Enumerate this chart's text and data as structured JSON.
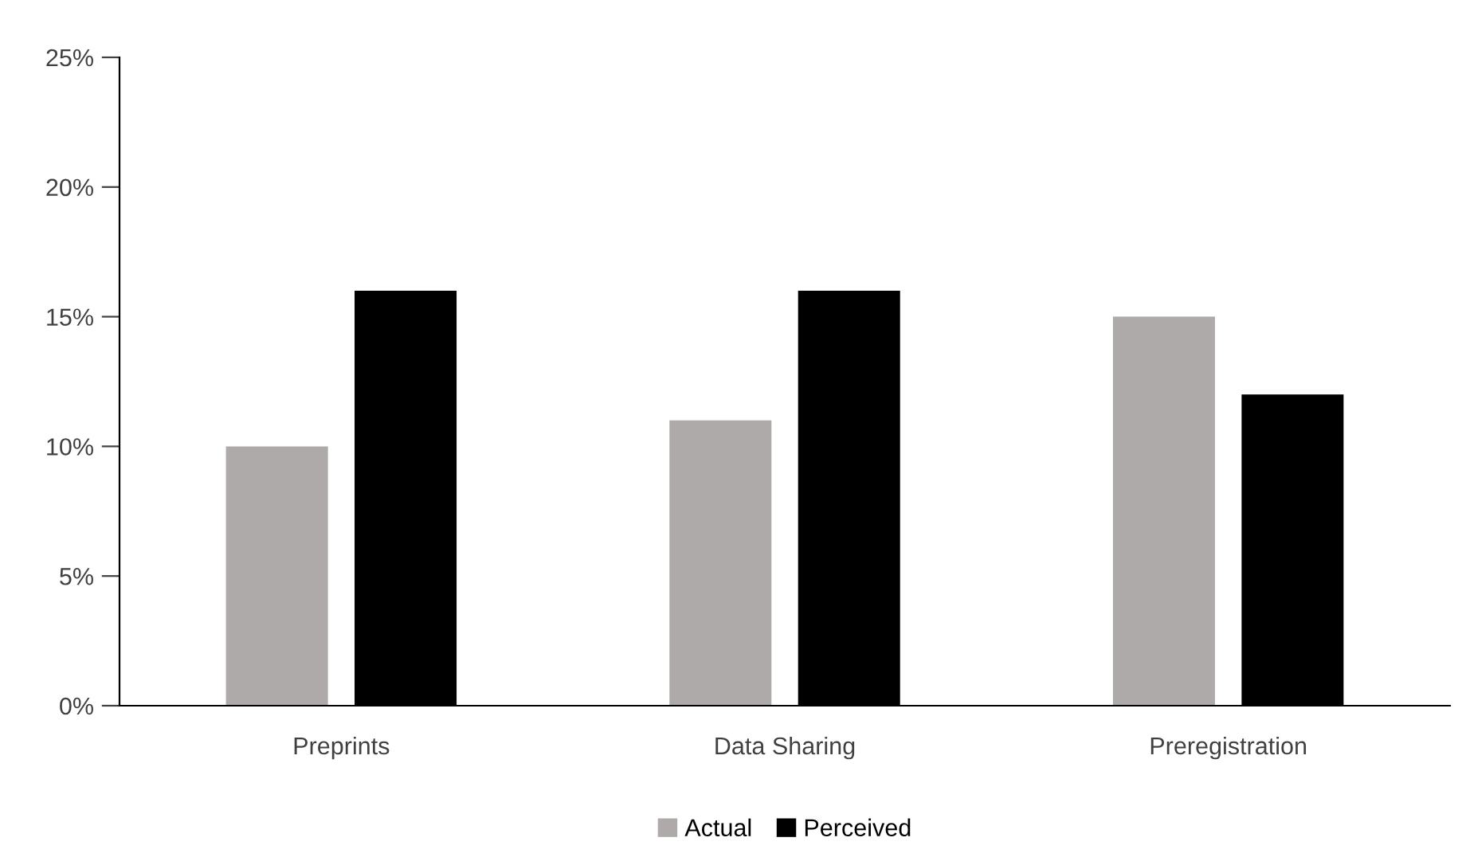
{
  "chart_data": {
    "type": "bar",
    "categories": [
      "Preprints",
      "Data Sharing",
      "Preregistration"
    ],
    "series": [
      {
        "name": "Actual",
        "color": "#aeaaaa",
        "values": [
          10,
          11,
          15
        ]
      },
      {
        "name": "Perceived",
        "color": "#000000",
        "values": [
          16,
          16,
          12
        ]
      }
    ],
    "ylim": [
      0,
      25
    ],
    "yticks": [
      {
        "value": 0,
        "label": "0%"
      },
      {
        "value": 5,
        "label": "5%"
      },
      {
        "value": 10,
        "label": "10%"
      },
      {
        "value": 15,
        "label": "15%"
      },
      {
        "value": 20,
        "label": "20%"
      },
      {
        "value": 25,
        "label": "25%"
      }
    ],
    "grid": false,
    "legend": "bottom"
  }
}
